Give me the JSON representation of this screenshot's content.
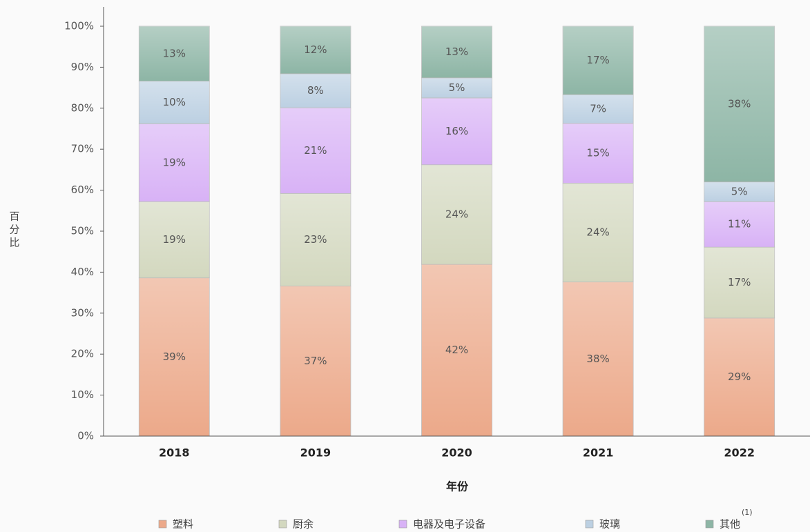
{
  "chart_data": {
    "type": "stacked_bar",
    "x_label": "年份",
    "y_label": "百分比",
    "categories": [
      "2018",
      "2019",
      "2020",
      "2021",
      "2022"
    ],
    "series": [
      {
        "name": "塑料",
        "color": "#eca98a",
        "values": [
          38.6,
          36.6,
          41.9,
          37.6,
          28.8
        ],
        "value_labels": [
          "39%",
          "37%",
          "42%",
          "38%",
          "29%"
        ]
      },
      {
        "name": "厨余",
        "color": "#d3d8bf",
        "values": [
          18.6,
          22.6,
          24.3,
          24.1,
          17.3
        ],
        "value_labels": [
          "19%",
          "23%",
          "24%",
          "24%",
          "17%"
        ]
      },
      {
        "name": "电器及电子设备",
        "color": "#d8b2f6",
        "values": [
          19.0,
          20.9,
          16.3,
          14.6,
          11.1
        ],
        "value_labels": [
          "19%",
          "21%",
          "16%",
          "15%",
          "11%"
        ]
      },
      {
        "name": "玻璃",
        "color": "#bcd0e2",
        "values": [
          10.4,
          8.3,
          4.9,
          7.0,
          4.8
        ],
        "value_labels": [
          "10%",
          "8%",
          "5%",
          "7%",
          "5%"
        ]
      },
      {
        "name": "其他",
        "color": "#8db5a5",
        "values": [
          13.4,
          11.6,
          12.6,
          16.7,
          38.0
        ],
        "value_labels": [
          "13%",
          "12%",
          "13%",
          "17%",
          "38%"
        ]
      }
    ],
    "legend_note": "(1)",
    "ylim": [
      0,
      100
    ],
    "yticks": [
      {
        "value": 0,
        "label": "0%"
      },
      {
        "value": 10,
        "label": "10%"
      },
      {
        "value": 20,
        "label": "20%"
      },
      {
        "value": 30,
        "label": "30%"
      },
      {
        "value": 40,
        "label": "40%"
      },
      {
        "value": 50,
        "label": "50%"
      },
      {
        "value": 60,
        "label": "60%"
      },
      {
        "value": 70,
        "label": "70%"
      },
      {
        "value": 80,
        "label": "80%"
      },
      {
        "value": 90,
        "label": "90%"
      },
      {
        "value": 100,
        "label": "100%"
      }
    ],
    "legend": "bottom"
  }
}
